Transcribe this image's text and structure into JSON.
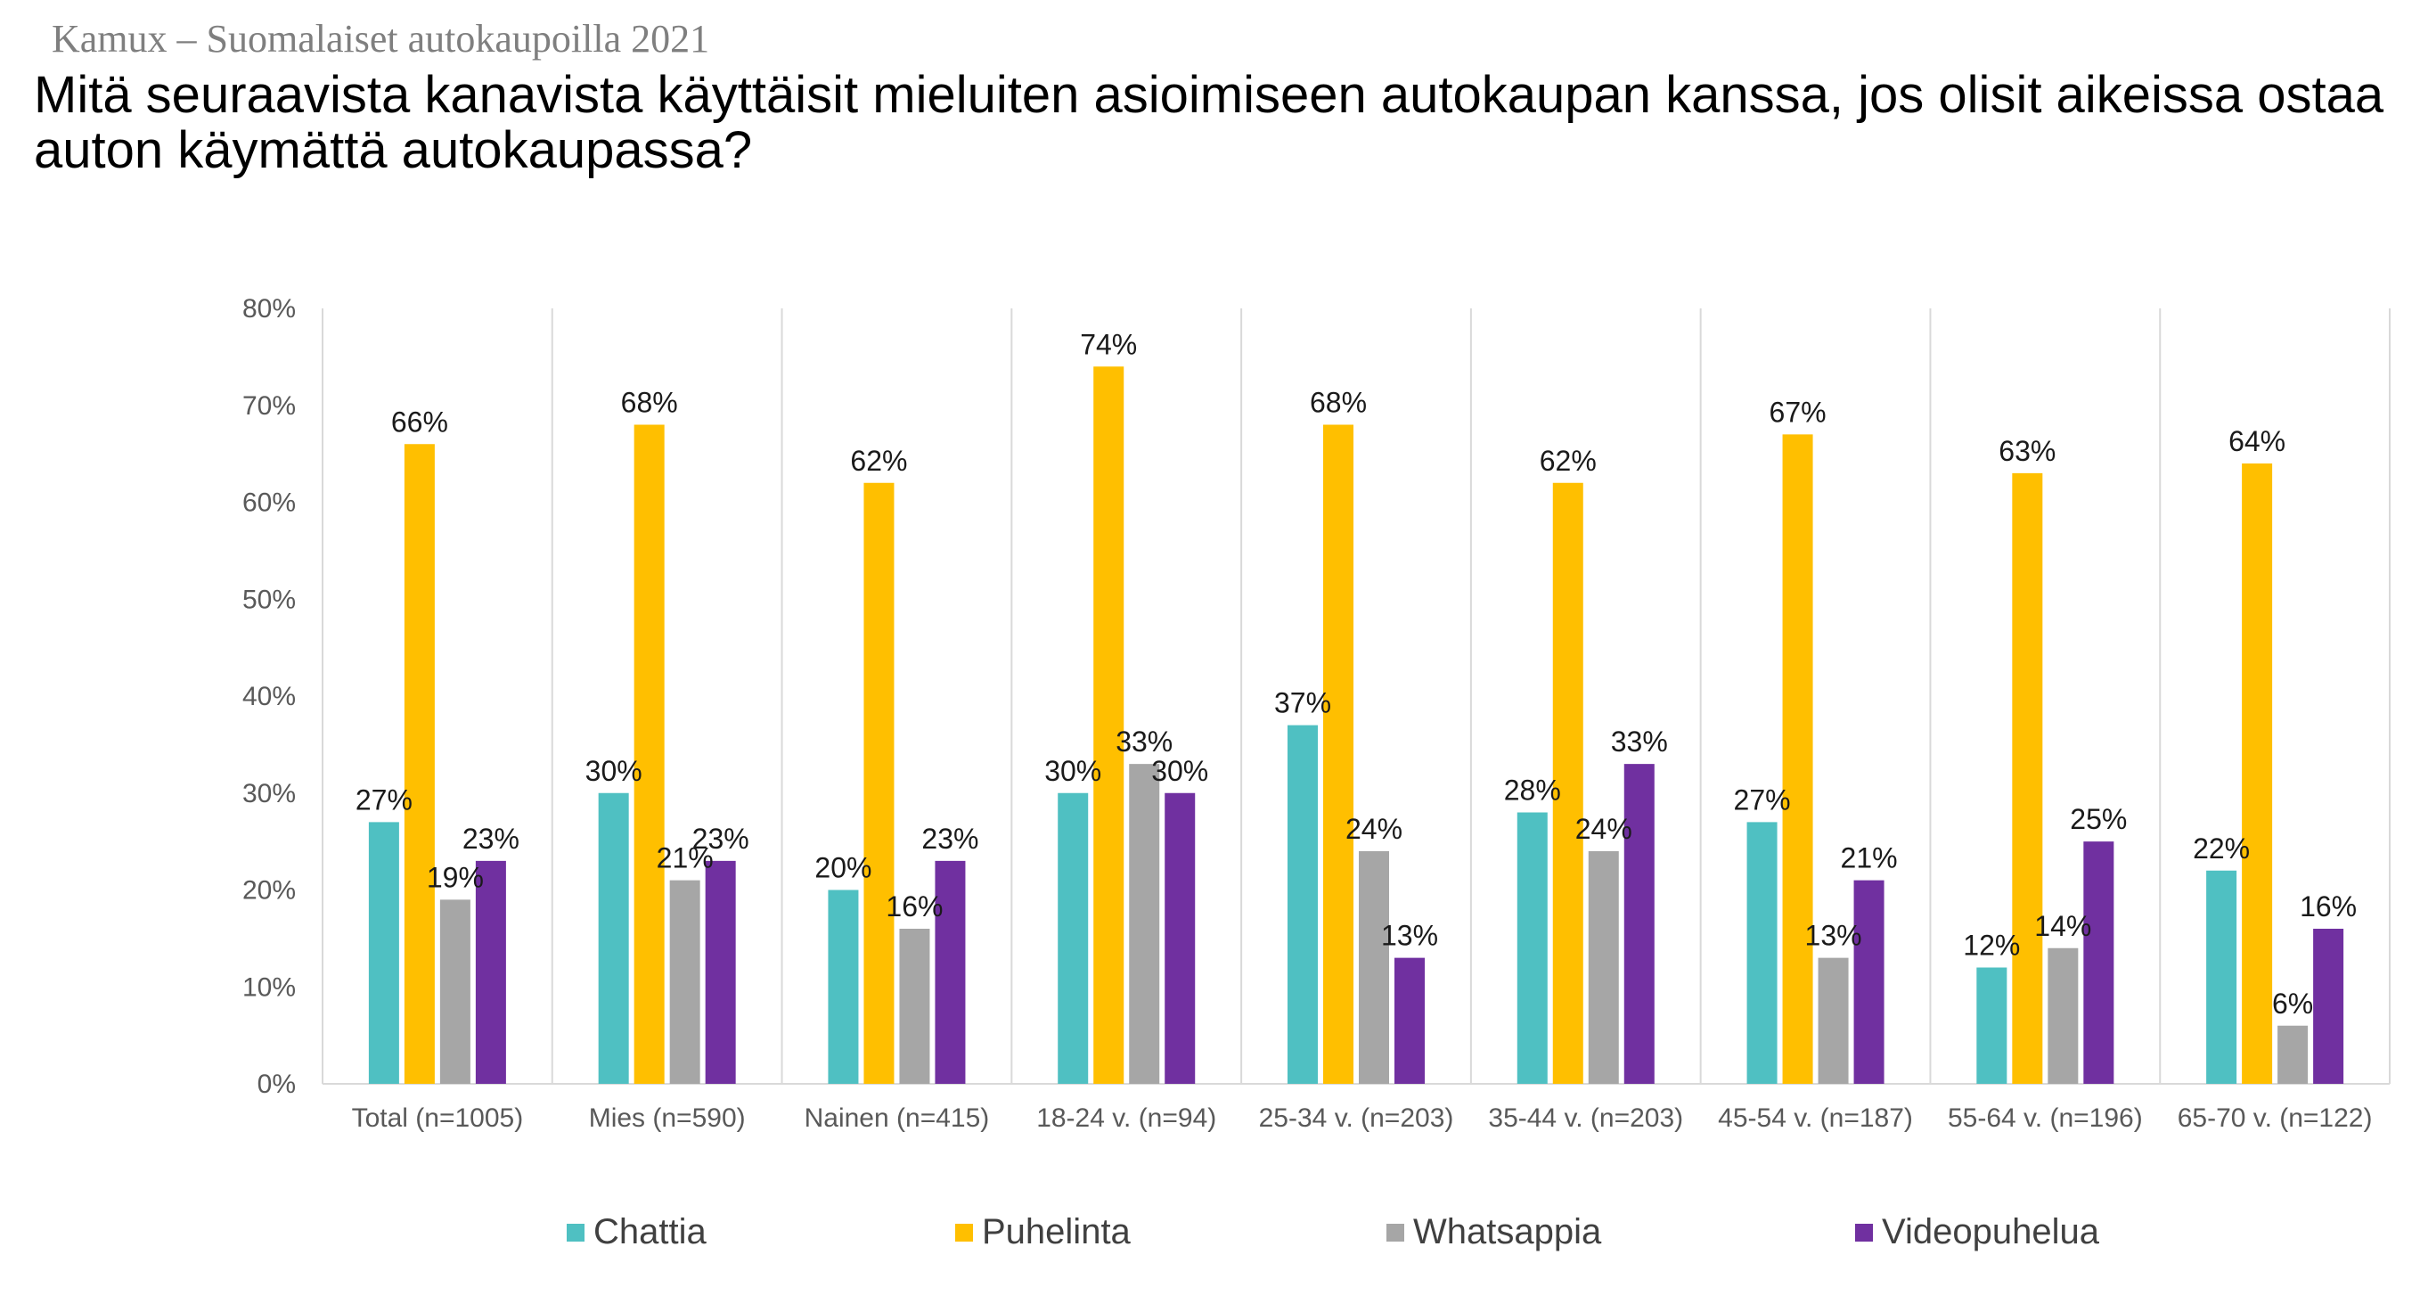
{
  "header": {
    "source": "Kamux – Suomalaiset autokaupoilla 2021"
  },
  "chart_data": {
    "type": "bar",
    "title": "Mitä seuraavista kanavista käyttäisit mieluiten asioimiseen autokaupan kanssa, jos olisit aikeissa ostaa auton käymättä autokaupassa?",
    "categories": [
      "Total (n=1005)",
      "Mies (n=590)",
      "Nainen (n=415)",
      "18-24 v. (n=94)",
      "25-34 v. (n=203)",
      "35-44 v. (n=203)",
      "45-54 v. (n=187)",
      "55-64 v. (n=196)",
      "65-70 v. (n=122)"
    ],
    "series": [
      {
        "name": "Chattia",
        "color": "#4fc0c2",
        "values": [
          27,
          30,
          20,
          30,
          37,
          28,
          27,
          12,
          22
        ],
        "labels": [
          "27%",
          "30%",
          "20%",
          "30%",
          "37%",
          "28%",
          "27%",
          "12%",
          "22%"
        ]
      },
      {
        "name": "Puhelinta",
        "color": "#ffbf00",
        "values": [
          66,
          68,
          62,
          74,
          68,
          62,
          67,
          63,
          64
        ],
        "labels": [
          "66%",
          "68%",
          "62%",
          "74%",
          "68%",
          "62%",
          "67%",
          "63%",
          "64%"
        ]
      },
      {
        "name": "Whatsappia",
        "color": "#a6a6a6",
        "values": [
          19,
          21,
          16,
          33,
          24,
          24,
          13,
          14,
          6
        ],
        "labels": [
          "19%",
          "21%",
          "16%",
          "33%",
          "24%",
          "24%",
          "13%",
          "14%",
          "6%"
        ]
      },
      {
        "name": "Videopuhelua",
        "color": "#7030a0",
        "values": [
          23,
          23,
          23,
          30,
          13,
          33,
          21,
          25,
          16
        ],
        "labels": [
          "23%",
          "23%",
          "23%",
          "30%",
          "13%",
          "33%",
          "21%",
          "25%",
          "16%"
        ]
      }
    ],
    "y_ticks": [
      0,
      10,
      20,
      30,
      40,
      50,
      60,
      70,
      80
    ],
    "y_tick_labels": [
      "0%",
      "10%",
      "20%",
      "30%",
      "40%",
      "50%",
      "60%",
      "70%",
      "80%"
    ],
    "ylim": [
      0,
      80
    ],
    "xlabel": "",
    "ylabel": "",
    "grid": "vertical category separators",
    "legend_position": "bottom"
  }
}
